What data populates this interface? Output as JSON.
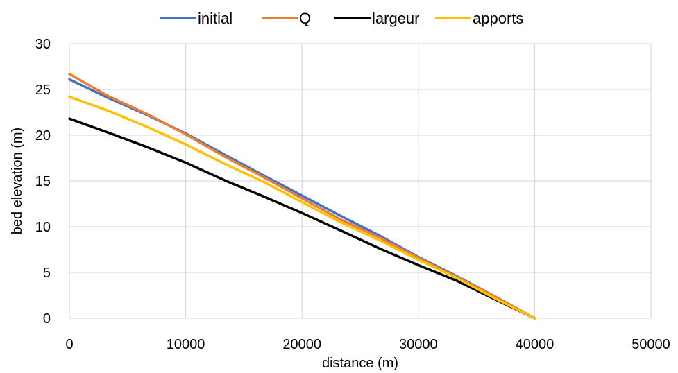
{
  "chart_data": {
    "type": "line",
    "title": "",
    "xlabel": "distance (m)",
    "ylabel": "bed elevation (m)",
    "xlim": [
      0,
      50000
    ],
    "ylim": [
      0,
      30
    ],
    "xticks": [
      0,
      10000,
      20000,
      30000,
      40000,
      50000
    ],
    "yticks": [
      0,
      5,
      10,
      15,
      20,
      25,
      30
    ],
    "xtick_labels": [
      "0",
      "10000",
      "20000",
      "30000",
      "40000",
      "50000"
    ],
    "ytick_labels": [
      "0",
      "5",
      "10",
      "15",
      "20",
      "25",
      "30"
    ],
    "grid": true,
    "legend_position": "top",
    "series": [
      {
        "name": "initial",
        "color": "#4472C4",
        "x": [
          0,
          3300,
          6700,
          10000,
          13300,
          16700,
          20000,
          23300,
          26700,
          30000,
          33300,
          36700,
          40000
        ],
        "y": [
          26.1,
          24.1,
          22.2,
          20.2,
          17.9,
          15.6,
          13.4,
          11.2,
          9.0,
          6.7,
          4.6,
          2.3,
          0
        ]
      },
      {
        "name": "Q",
        "color": "#ED7D31",
        "x": [
          0,
          3300,
          6700,
          10000,
          13300,
          16700,
          20000,
          23300,
          26700,
          30000,
          33300,
          36700,
          40000
        ],
        "y": [
          26.7,
          24.3,
          22.3,
          20.1,
          17.7,
          15.4,
          13.1,
          10.8,
          8.8,
          6.6,
          4.5,
          2.3,
          0
        ]
      },
      {
        "name": "largeur",
        "color": "#000000",
        "x": [
          0,
          3300,
          6700,
          10000,
          13300,
          16700,
          20000,
          23300,
          26700,
          30000,
          33300,
          36700,
          40000
        ],
        "y": [
          21.8,
          20.3,
          18.7,
          17.0,
          15.1,
          13.3,
          11.5,
          9.6,
          7.6,
          5.8,
          4.1,
          2.0,
          0
        ]
      },
      {
        "name": "apports",
        "color": "#FFC000",
        "x": [
          0,
          3300,
          6700,
          10000,
          13300,
          16700,
          20000,
          23300,
          26700,
          30000,
          33300,
          36700,
          40000
        ],
        "y": [
          24.2,
          22.7,
          20.9,
          19.0,
          16.9,
          14.9,
          12.7,
          10.5,
          8.5,
          6.4,
          4.4,
          2.1,
          0
        ]
      }
    ]
  }
}
